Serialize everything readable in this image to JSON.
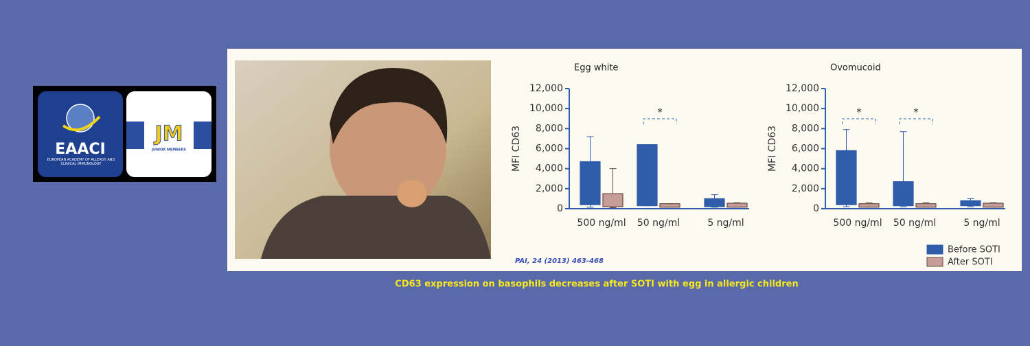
{
  "logo": {
    "name": "EAACI",
    "subtitle": "EUROPEAN ACADEMY OF ALLERGY AND CLINICAL IMMUNOLOGY",
    "badge": "JM",
    "badge_subtitle": "JUNIOR MEMBERS"
  },
  "citation": "PAI, 24 (2013) 463-468",
  "caption": "CD63 expression on basophils decreases after SOTI with egg in allergic children",
  "chart_data": [
    {
      "type": "box",
      "title": "Egg white",
      "y_label": "MFI CD63",
      "categories": [
        "500 ng/ml",
        "50 ng/ml",
        "5 ng/ml"
      ],
      "ylim": [
        0,
        12000
      ],
      "yticks": [
        0,
        {
          "value": 2000,
          "label": "2,000"
        },
        {
          "value": 4000,
          "label": "4,000"
        },
        {
          "value": 6000,
          "label": "6,000"
        },
        {
          "value": 8000,
          "label": "8,000"
        },
        {
          "value": 10000,
          "label": "10,000"
        },
        {
          "value": 12000,
          "label": "12,000"
        }
      ],
      "series": [
        {
          "color": "#2f5da9",
          "min": [
            150,
            300,
            150
          ],
          "q1": [
            400,
            300,
            200
          ],
          "q3": [
            4700,
            6400,
            1000
          ],
          "max": [
            7200,
            6400,
            1400
          ]
        },
        {
          "color": "#c79d98",
          "min": [
            100,
            150,
            150
          ],
          "q1": [
            200,
            150,
            150
          ],
          "q3": [
            1500,
            500,
            550
          ],
          "max": [
            4000,
            500,
            600
          ]
        }
      ],
      "annotations": [
        {
          "text": "*",
          "category": "50 ng/ml"
        }
      ]
    },
    {
      "type": "box",
      "title": "Ovomucoid",
      "y_label": "MFI CD63",
      "categories": [
        "500 ng/ml",
        "50 ng/ml",
        "5 ng/ml"
      ],
      "ylim": [
        0,
        12000
      ],
      "yticks": [
        0,
        {
          "value": 2000,
          "label": "2,000"
        },
        {
          "value": 4000,
          "label": "4,000"
        },
        {
          "value": 6000,
          "label": "6,000"
        },
        {
          "value": 8000,
          "label": "8,000"
        },
        {
          "value": 10000,
          "label": "10,000"
        },
        {
          "value": 12000,
          "label": "12,000"
        }
      ],
      "series": [
        {
          "name": "Before SOTI",
          "color": "#2f5da9",
          "min": [
            200,
            200,
            200
          ],
          "q1": [
            400,
            300,
            300
          ],
          "q3": [
            5800,
            2700,
            800
          ],
          "max": [
            7900,
            7700,
            1000
          ]
        },
        {
          "name": "After SOTI",
          "color": "#c79d98",
          "min": [
            150,
            150,
            150
          ],
          "q1": [
            150,
            150,
            150
          ],
          "q3": [
            500,
            500,
            550
          ],
          "max": [
            600,
            600,
            600
          ]
        }
      ],
      "annotations": [
        {
          "text": "*",
          "category": "500 ng/ml"
        },
        {
          "text": "*",
          "category": "50 ng/ml"
        }
      ],
      "legend": "bottom-right"
    }
  ]
}
